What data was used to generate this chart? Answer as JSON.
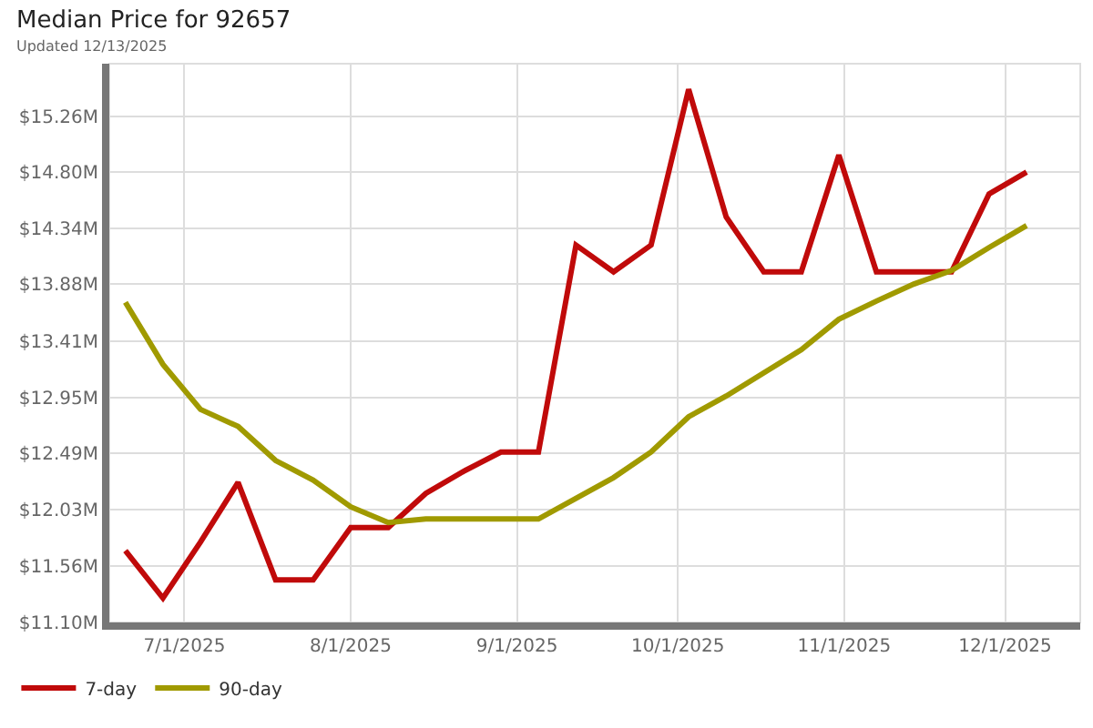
{
  "chart_data": {
    "type": "line",
    "title": "Median Price for 92657",
    "subtitle": "Updated 12/13/2025",
    "x": [
      "2025-06-20",
      "2025-06-27",
      "2025-07-04",
      "2025-07-11",
      "2025-07-18",
      "2025-07-25",
      "2025-08-01",
      "2025-08-08",
      "2025-08-15",
      "2025-08-22",
      "2025-08-29",
      "2025-09-05",
      "2025-09-12",
      "2025-09-19",
      "2025-09-26",
      "2025-10-03",
      "2025-10-10",
      "2025-10-17",
      "2025-10-24",
      "2025-10-31",
      "2025-11-07",
      "2025-11-14",
      "2025-11-21",
      "2025-11-28",
      "2025-12-05"
    ],
    "series": [
      {
        "name": "7-day",
        "color": "#c00a0a",
        "values": [
          11.69,
          11.3,
          11.76,
          12.25,
          11.45,
          11.45,
          11.88,
          11.88,
          12.16,
          12.34,
          12.5,
          12.5,
          14.2,
          13.98,
          14.2,
          15.48,
          14.43,
          13.98,
          13.98,
          14.94,
          13.98,
          13.98,
          13.98,
          14.62,
          14.8
        ]
      },
      {
        "name": "90-day",
        "color": "#a09a00",
        "values": [
          13.73,
          13.22,
          12.85,
          12.71,
          12.43,
          12.27,
          12.05,
          11.92,
          11.95,
          11.95,
          11.95,
          11.95,
          12.12,
          12.29,
          12.5,
          12.79,
          12.96,
          13.15,
          13.34,
          13.59,
          13.74,
          13.88,
          13.99,
          14.18,
          14.36
        ]
      }
    ],
    "xlim": [
      "2025-06-17",
      "2025-12-15"
    ],
    "xticks": [
      {
        "value": "2025-07-01",
        "label": "7/1/2025"
      },
      {
        "value": "2025-08-01",
        "label": "8/1/2025"
      },
      {
        "value": "2025-09-01",
        "label": "9/1/2025"
      },
      {
        "value": "2025-10-01",
        "label": "10/1/2025"
      },
      {
        "value": "2025-11-01",
        "label": "11/1/2025"
      },
      {
        "value": "2025-12-01",
        "label": "12/1/2025"
      }
    ],
    "ylim": [
      11.1,
      15.69
    ],
    "yticks": [
      {
        "value": 11.1,
        "label": "$11.10M"
      },
      {
        "value": 11.56,
        "label": "$11.56M"
      },
      {
        "value": 12.03,
        "label": "$12.03M"
      },
      {
        "value": 12.49,
        "label": "$12.49M"
      },
      {
        "value": 12.95,
        "label": "$12.95M"
      },
      {
        "value": 13.41,
        "label": "$13.41M"
      },
      {
        "value": 13.88,
        "label": "$13.88M"
      },
      {
        "value": 14.34,
        "label": "$14.34M"
      },
      {
        "value": 14.8,
        "label": "$14.80M"
      },
      {
        "value": 15.26,
        "label": "$15.26M"
      }
    ],
    "grid": true,
    "legend": "bottom left",
    "marker": "none",
    "line_style": "solid"
  }
}
